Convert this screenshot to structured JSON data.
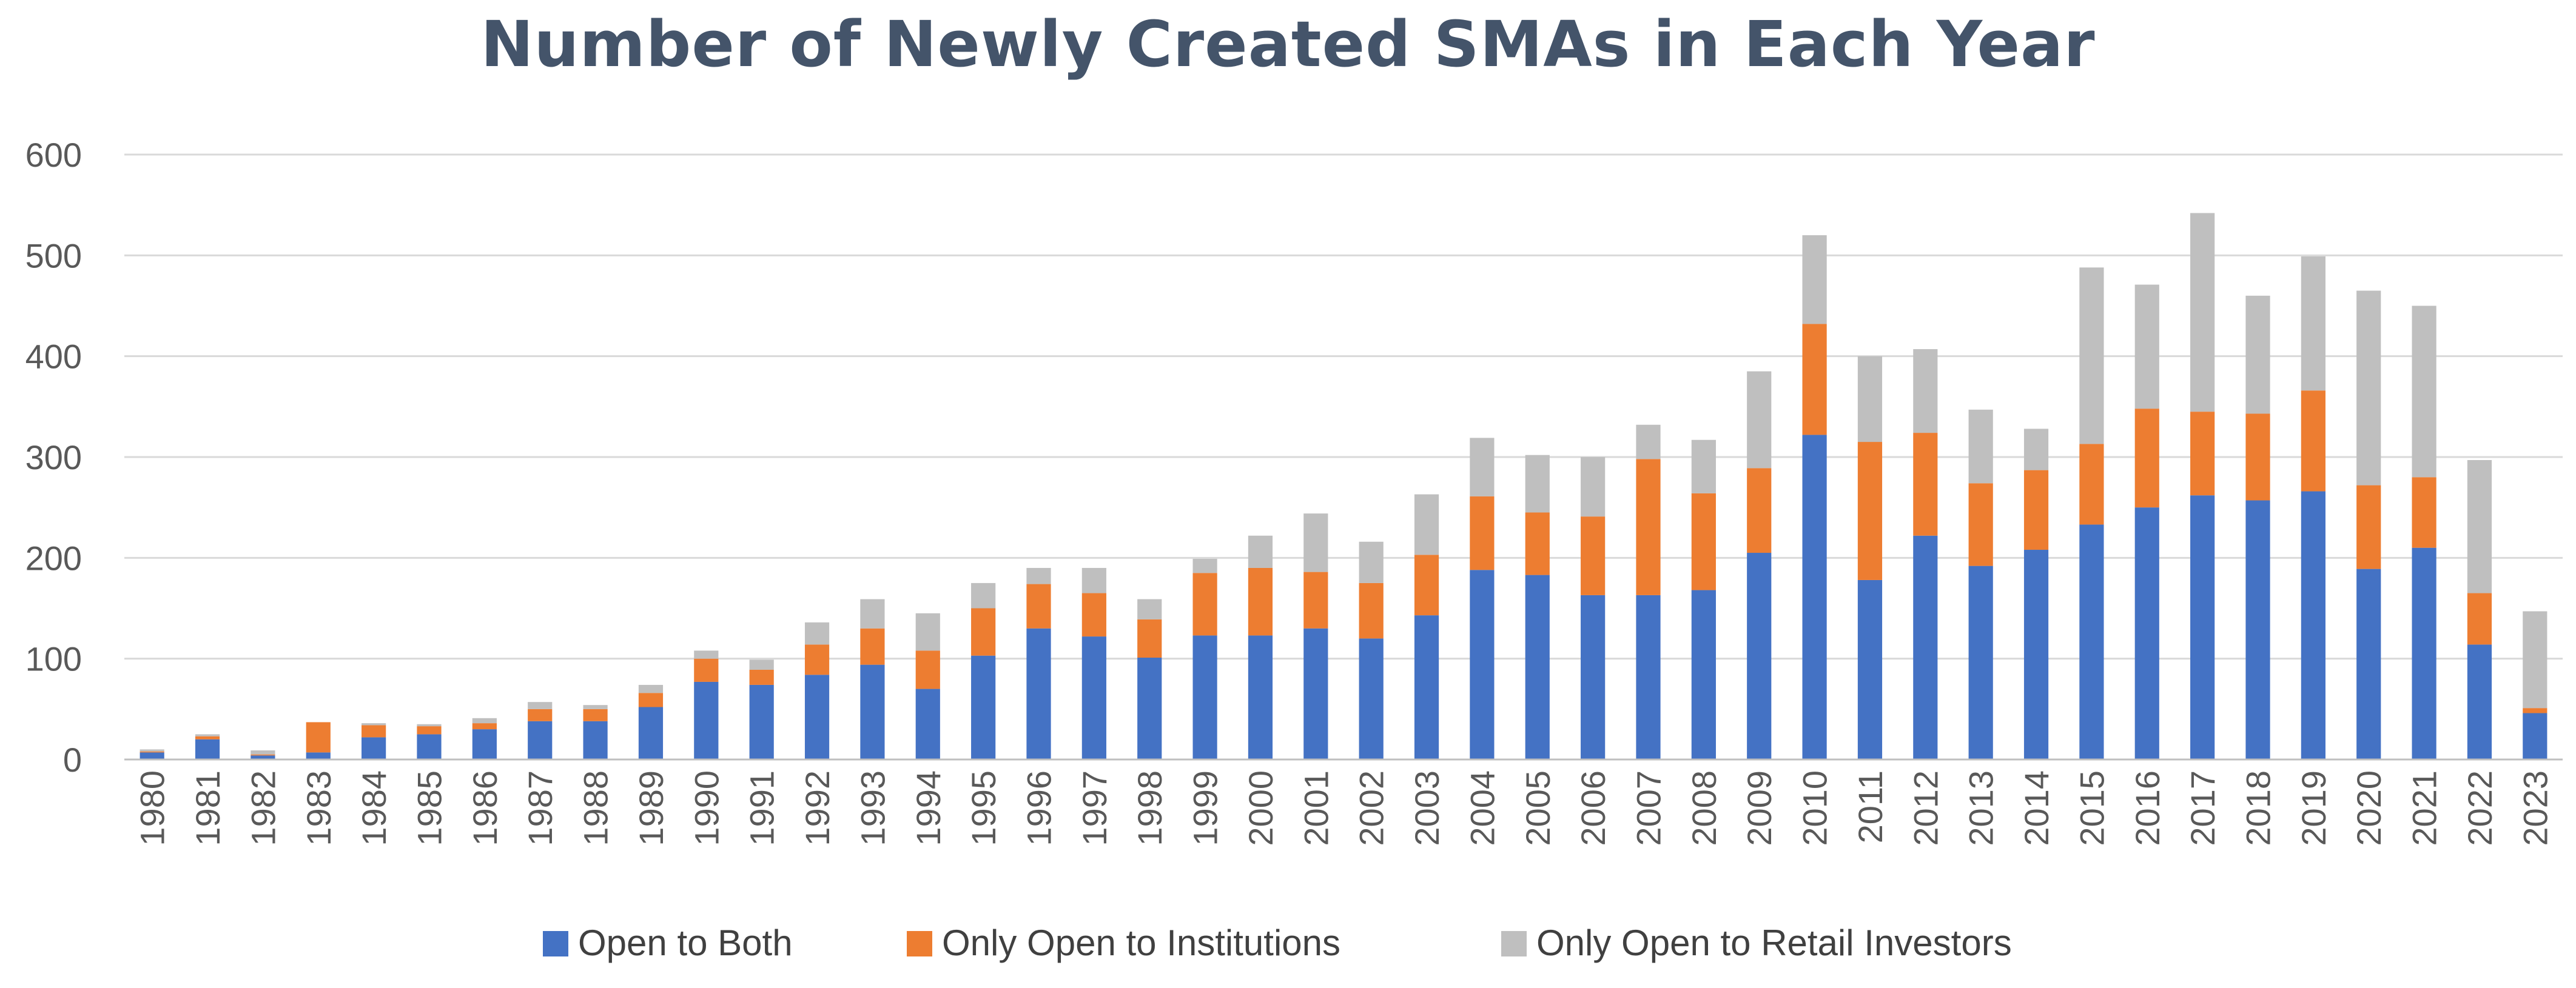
{
  "chart_data": {
    "type": "bar",
    "stacked": true,
    "title": "Number of Newly Created SMAs in Each Year",
    "xlabel": "",
    "ylabel": "",
    "ylim": [
      0,
      600
    ],
    "yticks": [
      0,
      100,
      200,
      300,
      400,
      500,
      600
    ],
    "grid": true,
    "legend_position": "bottom",
    "categories": [
      "1980",
      "1981",
      "1982",
      "1983",
      "1984",
      "1985",
      "1986",
      "1987",
      "1988",
      "1989",
      "1990",
      "1991",
      "1992",
      "1993",
      "1994",
      "1995",
      "1996",
      "1997",
      "1998",
      "1999",
      "2000",
      "2001",
      "2002",
      "2003",
      "2004",
      "2005",
      "2006",
      "2007",
      "2008",
      "2009",
      "2010",
      "2011",
      "2012",
      "2013",
      "2014",
      "2015",
      "2016",
      "2017",
      "2018",
      "2019",
      "2020",
      "2021",
      "2022",
      "2023"
    ],
    "series": [
      {
        "name": "Open to Both",
        "color": "#4472c4",
        "values": [
          7,
          20,
          4,
          7,
          22,
          25,
          30,
          38,
          38,
          52,
          77,
          74,
          84,
          94,
          70,
          103,
          130,
          122,
          101,
          123,
          123,
          130,
          120,
          143,
          188,
          183,
          163,
          163,
          168,
          205,
          322,
          178,
          222,
          192,
          208,
          233,
          250,
          262,
          257,
          266,
          189,
          210,
          114,
          46
        ]
      },
      {
        "name": "Only Open to Institutions",
        "color": "#ed7d31",
        "values": [
          1,
          3,
          1,
          30,
          12,
          8,
          6,
          12,
          12,
          14,
          23,
          15,
          30,
          36,
          38,
          47,
          44,
          43,
          38,
          62,
          67,
          56,
          55,
          60,
          73,
          62,
          78,
          135,
          96,
          84,
          110,
          137,
          102,
          82,
          79,
          80,
          98,
          83,
          86,
          100,
          83,
          70,
          51,
          5
        ]
      },
      {
        "name": "Only Open to Retail Investors",
        "color": "#bfbfbf",
        "values": [
          2,
          2,
          4,
          0,
          2,
          2,
          5,
          7,
          4,
          8,
          8,
          10,
          22,
          29,
          37,
          25,
          16,
          25,
          20,
          14,
          32,
          58,
          41,
          60,
          58,
          57,
          59,
          34,
          53,
          96,
          88,
          85,
          83,
          73,
          41,
          175,
          123,
          197,
          117,
          133,
          193,
          170,
          132,
          96
        ]
      }
    ]
  }
}
